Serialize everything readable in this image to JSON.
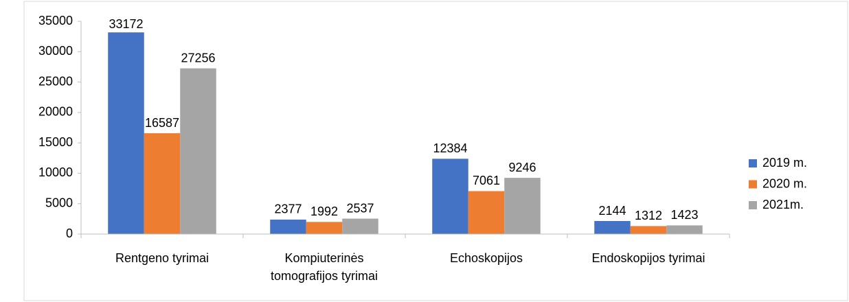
{
  "chart_data": {
    "type": "bar",
    "categories": [
      "Rentgeno tyrimai",
      "Kompiuterinės tomografijos tyrimai",
      "Echoskopijos",
      "Endoskopijos tyrimai"
    ],
    "series": [
      {
        "name": "2019 m.",
        "color": "#4472c4",
        "values": [
          33172,
          2377,
          12384,
          2144
        ]
      },
      {
        "name": "2020 m.",
        "color": "#ed7d31",
        "values": [
          16587,
          1992,
          7061,
          1312
        ]
      },
      {
        "name": "2021m.",
        "color": "#a5a5a5",
        "values": [
          27256,
          2537,
          9246,
          1423
        ]
      }
    ],
    "ylim": [
      0,
      35000
    ],
    "yticks": [
      0,
      5000,
      10000,
      15000,
      20000,
      25000,
      30000,
      35000
    ],
    "grid": false,
    "legend": "right"
  }
}
